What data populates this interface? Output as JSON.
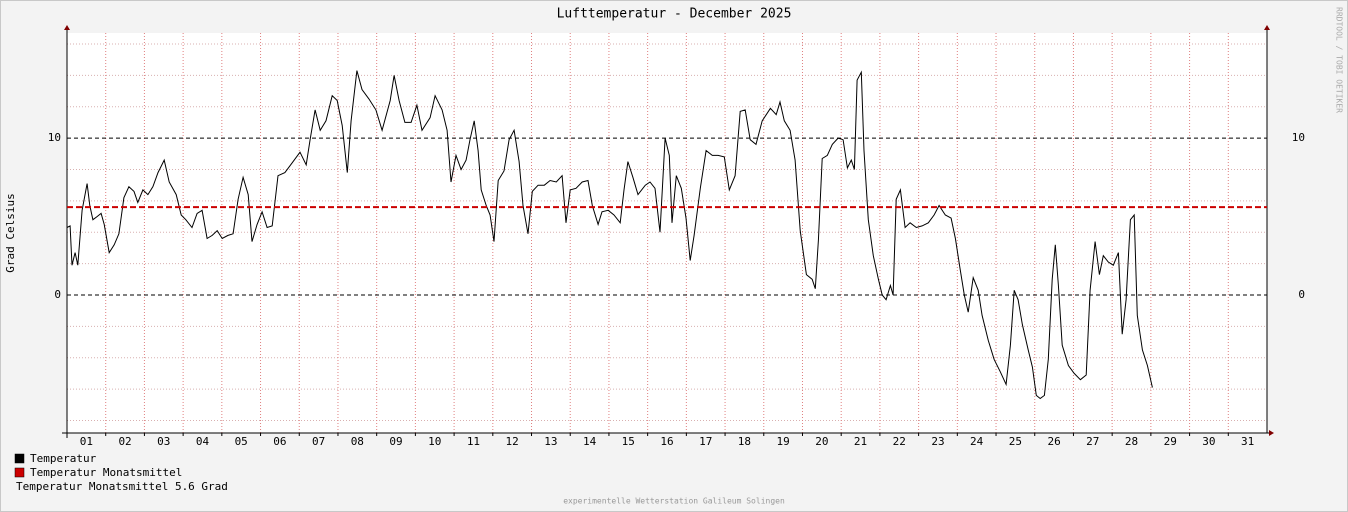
{
  "chart_data": {
    "type": "line",
    "title": "Lufttemperatur - December 2025",
    "ylabel": "Grad Celsius",
    "watermark": "RRDTOOL / TOBI OETIKER",
    "footer": "experimentelle Wetterstation Galileum Solingen",
    "summary": "Temperatur Monatsmittel 5.6 Grad",
    "xlim": [
      1,
      32
    ],
    "xticks": [
      {
        "value": 1.5,
        "label": "01"
      },
      {
        "value": 2.5,
        "label": "02"
      },
      {
        "value": 3.5,
        "label": "03"
      },
      {
        "value": 4.5,
        "label": "04"
      },
      {
        "value": 5.5,
        "label": "05"
      },
      {
        "value": 6.5,
        "label": "06"
      },
      {
        "value": 7.5,
        "label": "07"
      },
      {
        "value": 8.5,
        "label": "08"
      },
      {
        "value": 9.5,
        "label": "09"
      },
      {
        "value": 10.5,
        "label": "10"
      },
      {
        "value": 11.5,
        "label": "11"
      },
      {
        "value": 12.5,
        "label": "12"
      },
      {
        "value": 13.5,
        "label": "13"
      },
      {
        "value": 14.5,
        "label": "14"
      },
      {
        "value": 15.5,
        "label": "15"
      },
      {
        "value": 16.5,
        "label": "16"
      },
      {
        "value": 17.5,
        "label": "17"
      },
      {
        "value": 18.5,
        "label": "18"
      },
      {
        "value": 19.5,
        "label": "19"
      },
      {
        "value": 20.5,
        "label": "20"
      },
      {
        "value": 21.5,
        "label": "21"
      },
      {
        "value": 22.5,
        "label": "22"
      },
      {
        "value": 23.5,
        "label": "23"
      },
      {
        "value": 24.5,
        "label": "24"
      },
      {
        "value": 25.5,
        "label": "25"
      },
      {
        "value": 26.5,
        "label": "26"
      },
      {
        "value": 27.5,
        "label": "27"
      },
      {
        "value": 28.5,
        "label": "28"
      },
      {
        "value": 29.5,
        "label": "29"
      },
      {
        "value": 30.5,
        "label": "30"
      },
      {
        "value": 31.5,
        "label": "31"
      }
    ],
    "xgrid": [
      2,
      3,
      4,
      5,
      6,
      7,
      8,
      9,
      10,
      11,
      12,
      13,
      14,
      15,
      16,
      17,
      18,
      19,
      20,
      21,
      22,
      23,
      24,
      25,
      26,
      27,
      28,
      29,
      30,
      31
    ],
    "ylim": [
      -8.8,
      16.7
    ],
    "yticks": [
      0,
      10
    ],
    "yticks_minor": [
      -8,
      -6,
      -4,
      -2,
      2,
      4,
      6,
      8,
      12,
      14,
      16
    ],
    "grid": true,
    "x": [
      1.0,
      1.08,
      1.13,
      1.21,
      1.28,
      1.39,
      1.52,
      1.59,
      1.67,
      1.78,
      1.88,
      1.96,
      2.09,
      2.22,
      2.34,
      2.47,
      2.6,
      2.73,
      2.83,
      2.96,
      3.09,
      3.22,
      3.35,
      3.51,
      3.64,
      3.82,
      3.95,
      4.07,
      4.23,
      4.36,
      4.49,
      4.62,
      4.75,
      4.88,
      5.01,
      5.16,
      5.29,
      5.42,
      5.55,
      5.68,
      5.78,
      5.91,
      6.04,
      6.17,
      6.3,
      6.45,
      6.63,
      6.81,
      7.02,
      7.18,
      7.28,
      7.41,
      7.54,
      7.69,
      7.85,
      7.98,
      8.11,
      8.24,
      8.34,
      8.49,
      8.62,
      8.8,
      8.98,
      9.14,
      9.35,
      9.45,
      9.58,
      9.73,
      9.89,
      10.04,
      10.17,
      10.38,
      10.51,
      10.69,
      10.82,
      10.92,
      11.05,
      11.18,
      11.31,
      11.41,
      11.52,
      11.62,
      11.7,
      11.83,
      11.93,
      12.03,
      12.14,
      12.29,
      12.42,
      12.55,
      12.68,
      12.78,
      12.91,
      13.02,
      13.17,
      13.33,
      13.48,
      13.64,
      13.79,
      13.89,
      14.0,
      14.15,
      14.31,
      14.46,
      14.57,
      14.72,
      14.82,
      14.98,
      15.13,
      15.29,
      15.39,
      15.49,
      15.62,
      15.75,
      15.94,
      16.06,
      16.19,
      16.32,
      16.45,
      16.56,
      16.63,
      16.74,
      16.87,
      16.99,
      17.1,
      17.2,
      17.36,
      17.51,
      17.67,
      17.82,
      17.98,
      18.11,
      18.26,
      18.39,
      18.52,
      18.65,
      18.8,
      18.96,
      19.17,
      19.32,
      19.42,
      19.53,
      19.68,
      19.81,
      19.94,
      20.1,
      20.25,
      20.33,
      20.41,
      20.51,
      20.64,
      20.77,
      20.92,
      21.05,
      21.16,
      21.26,
      21.34,
      21.41,
      21.52,
      21.59,
      21.7,
      21.83,
      21.96,
      22.06,
      22.16,
      22.27,
      22.34,
      22.42,
      22.53,
      22.65,
      22.78,
      22.94,
      23.09,
      23.25,
      23.4,
      23.53,
      23.69,
      23.84,
      23.95,
      24.07,
      24.18,
      24.28,
      24.41,
      24.54,
      24.64,
      24.8,
      24.95,
      25.11,
      25.26,
      25.37,
      25.47,
      25.57,
      25.68,
      25.83,
      25.94,
      26.04,
      26.14,
      26.25,
      26.35,
      26.45,
      26.53,
      26.61,
      26.71,
      26.87,
      27.02,
      27.18,
      27.33,
      27.43,
      27.56,
      27.67,
      27.77,
      27.9,
      28.03,
      28.16,
      28.26,
      28.36,
      28.47,
      28.57,
      28.65,
      28.78,
      28.91,
      29.04
    ],
    "series": [
      {
        "name": "Temperatur",
        "color": "#000000",
        "values": [
          4.3,
          4.4,
          1.9,
          2.7,
          1.9,
          5.4,
          7.1,
          5.7,
          4.8,
          5.0,
          5.2,
          4.5,
          2.7,
          3.2,
          3.9,
          6.2,
          6.9,
          6.6,
          5.9,
          6.7,
          6.4,
          6.9,
          7.8,
          8.6,
          7.2,
          6.4,
          5.1,
          4.8,
          4.3,
          5.2,
          5.4,
          3.6,
          3.8,
          4.1,
          3.6,
          3.8,
          3.9,
          6.1,
          7.5,
          6.4,
          3.4,
          4.5,
          5.3,
          4.3,
          4.4,
          7.6,
          7.8,
          8.4,
          9.1,
          8.3,
          9.9,
          11.8,
          10.5,
          11.1,
          12.7,
          12.4,
          10.8,
          7.8,
          11.1,
          14.3,
          13.1,
          12.5,
          11.8,
          10.5,
          12.4,
          14.0,
          12.4,
          11.0,
          11.0,
          12.1,
          10.5,
          11.3,
          12.7,
          11.8,
          10.5,
          7.2,
          8.9,
          8.0,
          8.6,
          9.9,
          11.1,
          9.2,
          6.7,
          5.7,
          5.1,
          3.4,
          7.3,
          7.9,
          9.9,
          10.5,
          8.5,
          5.7,
          3.9,
          6.6,
          7.0,
          7.0,
          7.3,
          7.2,
          7.6,
          4.6,
          6.7,
          6.8,
          7.2,
          7.3,
          5.7,
          4.5,
          5.3,
          5.4,
          5.1,
          4.6,
          6.7,
          8.5,
          7.5,
          6.4,
          7.0,
          7.2,
          6.8,
          4.0,
          10.0,
          8.9,
          4.6,
          7.6,
          6.8,
          4.9,
          2.2,
          3.8,
          6.8,
          9.2,
          8.9,
          8.9,
          8.8,
          6.7,
          7.6,
          11.7,
          11.8,
          9.9,
          9.6,
          11.1,
          11.9,
          11.5,
          12.3,
          11.1,
          10.5,
          8.6,
          4.1,
          1.3,
          1.0,
          0.4,
          3.5,
          8.7,
          8.9,
          9.6,
          10.0,
          9.9,
          8.1,
          8.6,
          8.0,
          13.7,
          14.2,
          9.2,
          4.8,
          2.5,
          1.0,
          0.0,
          -0.3,
          0.6,
          0.0,
          6.1,
          6.7,
          4.3,
          4.6,
          4.3,
          4.4,
          4.6,
          5.1,
          5.7,
          5.1,
          4.9,
          3.6,
          1.7,
          0.0,
          -1.1,
          1.1,
          0.3,
          -1.3,
          -2.9,
          -4.1,
          -4.9,
          -5.7,
          -3.2,
          0.3,
          -0.3,
          -1.9,
          -3.5,
          -4.6,
          -6.4,
          -6.6,
          -6.4,
          -4.1,
          1.0,
          3.2,
          0.6,
          -3.2,
          -4.5,
          -5.0,
          -5.4,
          -5.1,
          0.3,
          3.4,
          1.3,
          2.5,
          2.1,
          1.9,
          2.7,
          -2.5,
          -0.3,
          4.8,
          5.1,
          -1.3,
          -3.5,
          -4.5,
          -5.9
        ]
      }
    ],
    "reference_line": {
      "name": "Temperatur Monatsmittel",
      "value": 5.6,
      "color": "#cc0000"
    }
  }
}
